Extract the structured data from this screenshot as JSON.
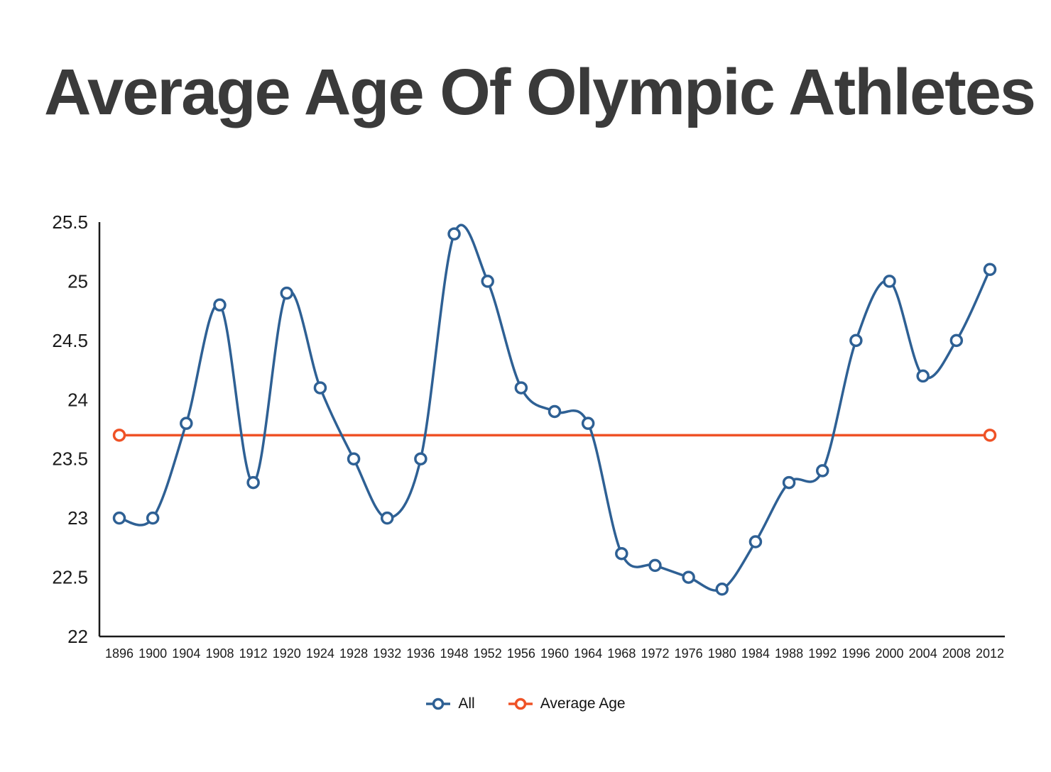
{
  "chart_data": {
    "type": "line",
    "title": "Average Age Of Olympic Athletes",
    "xlabel": "",
    "ylabel": "",
    "categories": [
      "1896",
      "1900",
      "1904",
      "1908",
      "1912",
      "1920",
      "1924",
      "1928",
      "1932",
      "1936",
      "1948",
      "1952",
      "1956",
      "1960",
      "1964",
      "1968",
      "1972",
      "1976",
      "1980",
      "1984",
      "1988",
      "1992",
      "1996",
      "2000",
      "2004",
      "2008",
      "2012"
    ],
    "series": [
      {
        "name": "All",
        "color": "#2e6094",
        "marker": "circle",
        "smooth": true,
        "values": [
          23.0,
          23.0,
          23.8,
          24.8,
          23.3,
          24.9,
          24.1,
          23.5,
          23.0,
          23.5,
          25.4,
          25.0,
          24.1,
          23.9,
          23.8,
          22.7,
          22.6,
          22.5,
          22.4,
          22.8,
          23.3,
          23.4,
          24.5,
          25.0,
          24.2,
          24.5,
          25.1
        ]
      },
      {
        "name": "Average Age",
        "color": "#ef5226",
        "marker": "circle",
        "constant": 23.7
      }
    ],
    "ylim": [
      22,
      25.5
    ],
    "ytick_step": 0.5,
    "yticks": [
      "22",
      "22.5",
      "23",
      "23.5",
      "24",
      "24.5",
      "25",
      "25.5"
    ],
    "grid": false,
    "legend_position": "bottom",
    "style": {
      "axis_color": "#1a1a1a",
      "text_color": "#1b1b1b",
      "background": "#ffffff",
      "marker_fill": "#ffffff"
    }
  },
  "legend": {
    "all_label": "All",
    "average_label": "Average Age"
  }
}
